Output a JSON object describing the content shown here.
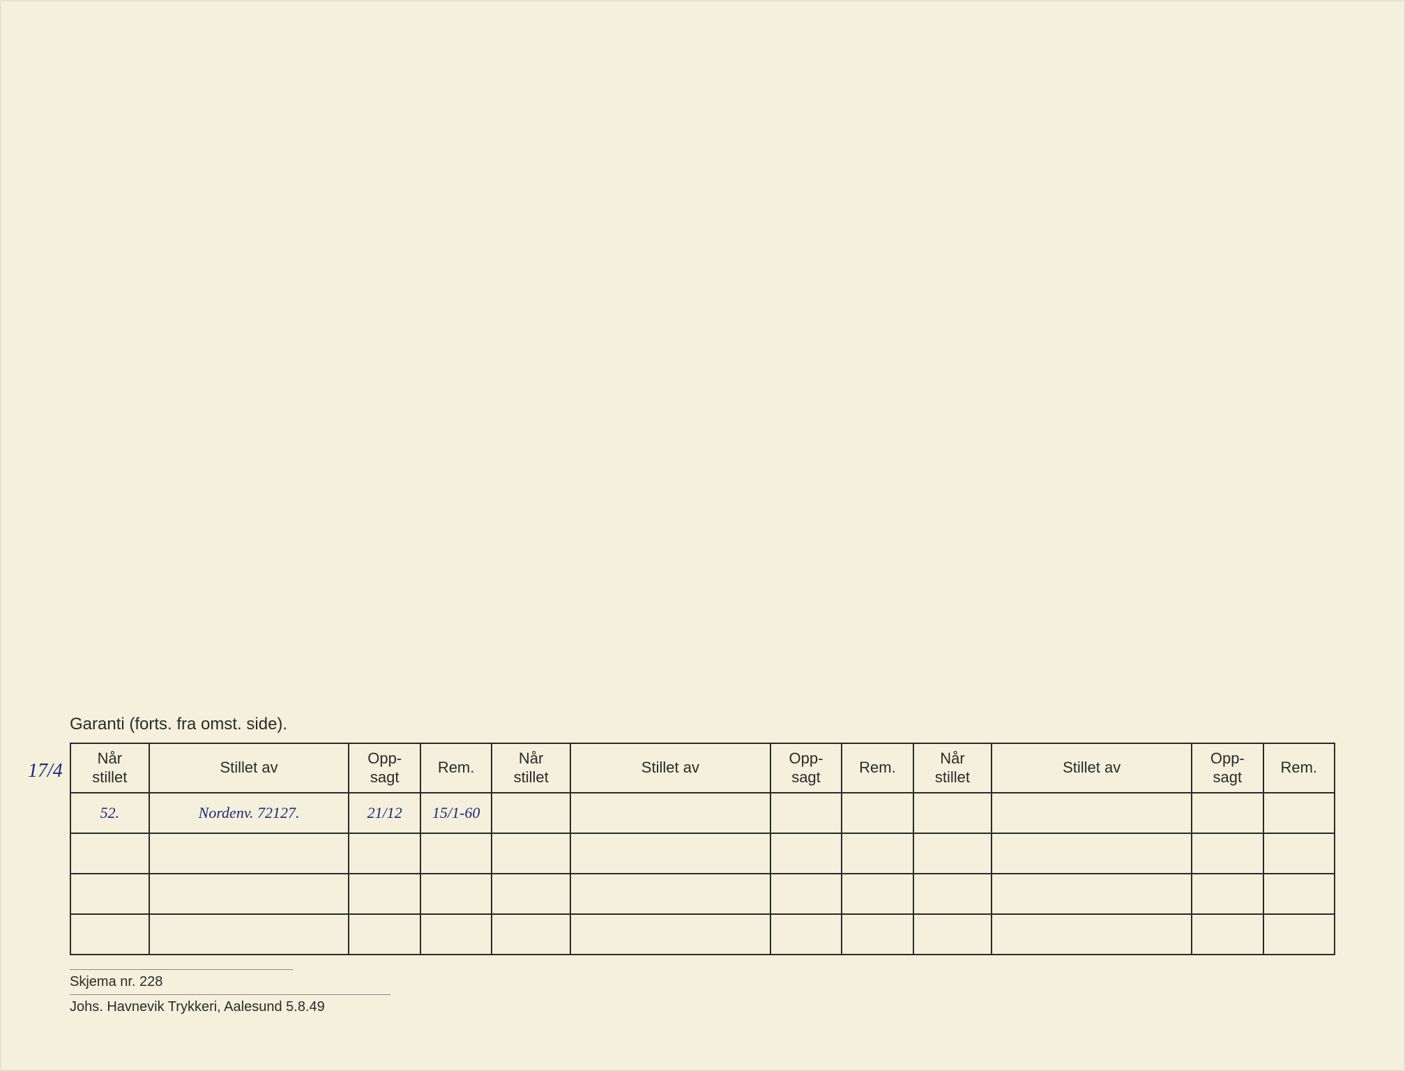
{
  "header": "Garanti (forts. fra omst. side).",
  "margin_note": "17/4",
  "table": {
    "columns": [
      {
        "key": "nar",
        "label": "Når\nstillet"
      },
      {
        "key": "stillet",
        "label": "Stillet av"
      },
      {
        "key": "opp",
        "label": "Opp-\nsagt"
      },
      {
        "key": "rem",
        "label": "Rem."
      }
    ],
    "column_groups": 3,
    "row_count": 4,
    "rows": [
      {
        "nar": "52.",
        "stillet": "Nordenv. 72127.",
        "opp": "21/12",
        "rem": "15/1-60"
      },
      {
        "nar": "",
        "stillet": "",
        "opp": "",
        "rem": ""
      },
      {
        "nar": "",
        "stillet": "",
        "opp": "",
        "rem": ""
      },
      {
        "nar": "",
        "stillet": "",
        "opp": "",
        "rem": ""
      }
    ]
  },
  "footer": {
    "line1": "Skjema nr. 228",
    "line2": "Johs. Havnevik Trykkeri, Aalesund 5.8.49"
  },
  "colors": {
    "page_bg": "#f5f0dc",
    "text": "#2a2a2a",
    "border": "#2a2a2a",
    "handwriting": "#1a2a7a"
  }
}
